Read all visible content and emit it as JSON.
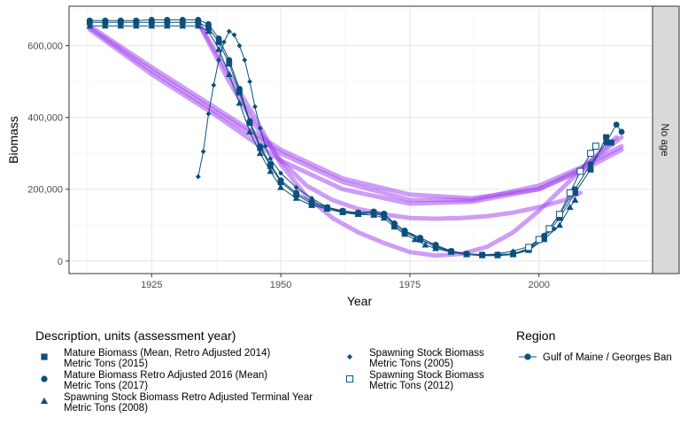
{
  "chart_data": {
    "type": "line",
    "xlabel": "Year",
    "ylabel": "Biomass",
    "facet_label": "No age",
    "xlim": [
      1909,
      2022
    ],
    "ylim": [
      -35000,
      710000
    ],
    "x_ticks": [
      1925,
      1950,
      1975,
      2000
    ],
    "x_tick_labels": [
      "1925",
      "1950",
      "1975",
      "2000"
    ],
    "y_ticks": [
      0,
      200000,
      400000,
      600000
    ],
    "y_tick_labels": [
      "0",
      "200,000",
      "400,000",
      "600,000"
    ],
    "grid": true,
    "line_color": "#0b4f7f",
    "smooth_color": "#a64df0",
    "legends": {
      "description": {
        "title": "Description, units (assessment year)",
        "entries": [
          {
            "shape": "square",
            "line1": "Mature Biomass (Mean, Retro Adjusted 2014)",
            "line2": "Metric Tons (2015)"
          },
          {
            "shape": "circle",
            "line1": "Mature Biomass Retro Adjusted 2016 (Mean)",
            "line2": "Metric Tons (2017)"
          },
          {
            "shape": "triangle",
            "line1": "Spawning Stock Biomass Retro Adjusted Terminal Year",
            "line2": "Metric Tons (2008)"
          },
          {
            "shape": "diamond",
            "line1": "Spawning Stock Biomass",
            "line2": "Metric Tons (2005)"
          },
          {
            "shape": "open-square",
            "line1": "Spawning Stock Biomass",
            "line2": "Metric Tons (2012)"
          }
        ]
      },
      "region": {
        "title": "Region",
        "entries": [
          "Gulf of Maine / Georges Ban"
        ]
      }
    },
    "series": [
      {
        "name": "Spawning Stock Biomass Retro Adjusted Terminal Year Metric Tons (2008)",
        "shape": "triangle",
        "points": [
          [
            1913,
            655000
          ],
          [
            1916,
            655000
          ],
          [
            1919,
            655000
          ],
          [
            1922,
            655000
          ],
          [
            1925,
            655000
          ],
          [
            1928,
            655000
          ],
          [
            1931,
            655000
          ],
          [
            1934,
            655000
          ],
          [
            1936,
            640000
          ],
          [
            1938,
            590000
          ],
          [
            1940,
            520000
          ],
          [
            1942,
            440000
          ],
          [
            1944,
            360000
          ],
          [
            1946,
            300000
          ],
          [
            1948,
            250000
          ],
          [
            1950,
            205000
          ],
          [
            1953,
            175000
          ],
          [
            1956,
            155000
          ],
          [
            1959,
            145000
          ],
          [
            1962,
            135000
          ],
          [
            1965,
            130000
          ],
          [
            1968,
            128000
          ],
          [
            1970,
            120000
          ],
          [
            1972,
            95000
          ],
          [
            1974,
            75000
          ],
          [
            1976,
            60000
          ],
          [
            1978,
            45000
          ],
          [
            1980,
            35000
          ],
          [
            1983,
            25000
          ],
          [
            1986,
            18000
          ],
          [
            1989,
            15000
          ],
          [
            1992,
            15000
          ],
          [
            1995,
            18000
          ],
          [
            1998,
            30000
          ],
          [
            2001,
            60000
          ],
          [
            2004,
            100000
          ],
          [
            2006,
            150000
          ],
          [
            2007,
            170000
          ]
        ]
      },
      {
        "name": "Spawning Stock Biomass Metric Tons (2005)",
        "shape": "diamond",
        "points": [
          [
            1934,
            235000
          ],
          [
            1935,
            305000
          ],
          [
            1936,
            410000
          ],
          [
            1937,
            490000
          ],
          [
            1938,
            560000
          ],
          [
            1939,
            610000
          ],
          [
            1940,
            640000
          ],
          [
            1941,
            630000
          ],
          [
            1942,
            600000
          ],
          [
            1943,
            560000
          ],
          [
            1944,
            500000
          ],
          [
            1945,
            430000
          ],
          [
            1946,
            370000
          ],
          [
            1947,
            320000
          ],
          [
            1948,
            285000
          ],
          [
            1950,
            245000
          ],
          [
            1953,
            205000
          ],
          [
            1956,
            175000
          ],
          [
            1959,
            150000
          ],
          [
            1962,
            135000
          ],
          [
            1965,
            130000
          ],
          [
            1968,
            135000
          ],
          [
            1970,
            125000
          ],
          [
            1972,
            105000
          ],
          [
            1974,
            85000
          ],
          [
            1977,
            60000
          ],
          [
            1980,
            40000
          ],
          [
            1983,
            25000
          ],
          [
            1986,
            18000
          ],
          [
            1989,
            17000
          ],
          [
            1992,
            20000
          ],
          [
            1995,
            28000
          ],
          [
            1998,
            40000
          ],
          [
            2001,
            70000
          ],
          [
            2003,
            90000
          ]
        ]
      },
      {
        "name": "Mature Biomass Retro Adjusted 2016 (Mean) Metric Tons (2017)",
        "shape": "circle",
        "points": [
          [
            1913,
            670000
          ],
          [
            1916,
            670000
          ],
          [
            1919,
            670000
          ],
          [
            1922,
            670000
          ],
          [
            1925,
            672000
          ],
          [
            1928,
            672000
          ],
          [
            1931,
            672000
          ],
          [
            1934,
            672000
          ],
          [
            1936,
            660000
          ],
          [
            1938,
            620000
          ],
          [
            1940,
            560000
          ],
          [
            1942,
            480000
          ],
          [
            1944,
            390000
          ],
          [
            1946,
            320000
          ],
          [
            1948,
            270000
          ],
          [
            1950,
            225000
          ],
          [
            1953,
            190000
          ],
          [
            1956,
            165000
          ],
          [
            1959,
            150000
          ],
          [
            1962,
            140000
          ],
          [
            1965,
            135000
          ],
          [
            1968,
            138000
          ],
          [
            1970,
            132000
          ],
          [
            1972,
            105000
          ],
          [
            1974,
            85000
          ],
          [
            1977,
            65000
          ],
          [
            1980,
            45000
          ],
          [
            1983,
            28000
          ],
          [
            1986,
            20000
          ],
          [
            1989,
            18000
          ],
          [
            1992,
            18000
          ],
          [
            1995,
            20000
          ],
          [
            1998,
            35000
          ],
          [
            2001,
            70000
          ],
          [
            2004,
            130000
          ],
          [
            2007,
            200000
          ],
          [
            2010,
            270000
          ],
          [
            2013,
            330000
          ],
          [
            2015,
            380000
          ],
          [
            2016,
            360000
          ]
        ]
      },
      {
        "name": "Mature Biomass (Mean, Retro Adjusted 2014) Metric Tons (2015)",
        "shape": "square",
        "points": [
          [
            1913,
            665000
          ],
          [
            1916,
            665000
          ],
          [
            1919,
            665000
          ],
          [
            1922,
            665000
          ],
          [
            1925,
            665000
          ],
          [
            1928,
            665000
          ],
          [
            1931,
            665000
          ],
          [
            1934,
            665000
          ],
          [
            1936,
            650000
          ],
          [
            1938,
            610000
          ],
          [
            1940,
            550000
          ],
          [
            1942,
            470000
          ],
          [
            1944,
            385000
          ],
          [
            1946,
            315000
          ],
          [
            1948,
            265000
          ],
          [
            1950,
            220000
          ],
          [
            1953,
            185000
          ],
          [
            1956,
            160000
          ],
          [
            1959,
            148000
          ],
          [
            1962,
            138000
          ],
          [
            1965,
            132000
          ],
          [
            1968,
            135000
          ],
          [
            1970,
            128000
          ],
          [
            1972,
            100000
          ],
          [
            1974,
            80000
          ],
          [
            1977,
            60000
          ],
          [
            1980,
            42000
          ],
          [
            1983,
            26000
          ],
          [
            1986,
            19000
          ],
          [
            1989,
            17000
          ],
          [
            1992,
            17000
          ],
          [
            1995,
            19000
          ],
          [
            1998,
            32000
          ],
          [
            2001,
            65000
          ],
          [
            2004,
            120000
          ],
          [
            2007,
            190000
          ],
          [
            2010,
            255000
          ],
          [
            2013,
            345000
          ],
          [
            2014,
            330000
          ]
        ]
      },
      {
        "name": "Spawning Stock Biomass Metric Tons (2012)",
        "shape": "open-square",
        "points": [
          [
            1998,
            38000
          ],
          [
            2000,
            60000
          ],
          [
            2002,
            90000
          ],
          [
            2004,
            130000
          ],
          [
            2006,
            190000
          ],
          [
            2008,
            250000
          ],
          [
            2010,
            300000
          ],
          [
            2011,
            320000
          ]
        ]
      }
    ],
    "smooth_lines": [
      {
        "points": [
          [
            1913,
            645000
          ],
          [
            1925,
            520000
          ],
          [
            1937,
            410000
          ],
          [
            1950,
            280000
          ],
          [
            1962,
            200000
          ],
          [
            1975,
            160000
          ],
          [
            1987,
            165000
          ],
          [
            2000,
            200000
          ],
          [
            2008,
            250000
          ],
          [
            2016,
            310000
          ]
        ]
      },
      {
        "points": [
          [
            1913,
            650000
          ],
          [
            1925,
            530000
          ],
          [
            1937,
            420000
          ],
          [
            1950,
            300000
          ],
          [
            1962,
            220000
          ],
          [
            1975,
            170000
          ],
          [
            1987,
            170000
          ],
          [
            2000,
            210000
          ],
          [
            2008,
            260000
          ],
          [
            2016,
            320000
          ]
        ]
      },
      {
        "points": [
          [
            1913,
            655000
          ],
          [
            1925,
            540000
          ],
          [
            1937,
            430000
          ],
          [
            1950,
            310000
          ],
          [
            1962,
            230000
          ],
          [
            1975,
            185000
          ],
          [
            1987,
            175000
          ],
          [
            2000,
            200000
          ],
          [
            2008,
            255000
          ],
          [
            2016,
            345000
          ]
        ]
      },
      {
        "points": [
          [
            1934,
            665000
          ],
          [
            1940,
            520000
          ],
          [
            1945,
            400000
          ],
          [
            1950,
            270000
          ],
          [
            1955,
            180000
          ],
          [
            1960,
            120000
          ],
          [
            1965,
            80000
          ],
          [
            1970,
            50000
          ],
          [
            1975,
            25000
          ],
          [
            1980,
            15000
          ],
          [
            1985,
            20000
          ],
          [
            1990,
            40000
          ],
          [
            1995,
            80000
          ],
          [
            2000,
            140000
          ],
          [
            2005,
            210000
          ],
          [
            2010,
            280000
          ],
          [
            2015,
            345000
          ]
        ]
      },
      {
        "points": [
          [
            1934,
            665000
          ],
          [
            1940,
            500000
          ],
          [
            1945,
            380000
          ],
          [
            1950,
            280000
          ],
          [
            1955,
            210000
          ],
          [
            1960,
            170000
          ],
          [
            1965,
            145000
          ],
          [
            1970,
            130000
          ],
          [
            1975,
            120000
          ],
          [
            1980,
            118000
          ],
          [
            1985,
            120000
          ],
          [
            1990,
            125000
          ],
          [
            1995,
            135000
          ],
          [
            2000,
            150000
          ],
          [
            2005,
            170000
          ],
          [
            2008,
            190000
          ]
        ]
      }
    ]
  }
}
